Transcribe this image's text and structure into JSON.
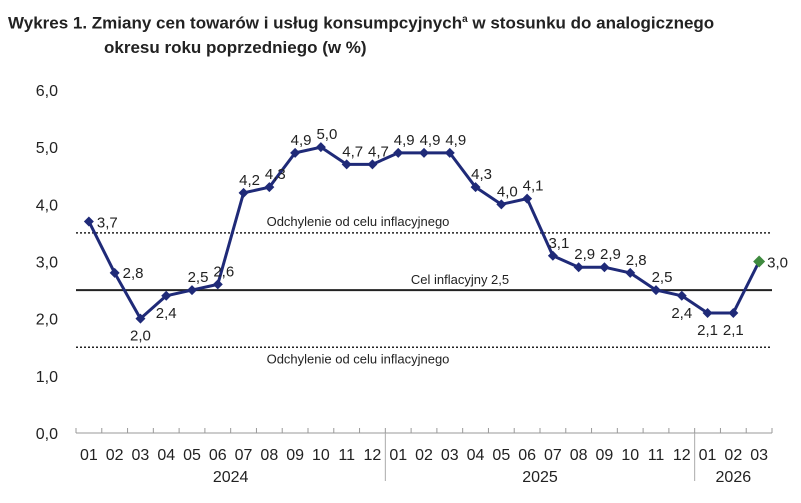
{
  "chart_data": {
    "type": "line",
    "title_line1": "Wykres 1. Zmiany cen towarów i usług konsumpcyjnych",
    "title_sup": "a",
    "title_mid": " w stosunku do analogicznego",
    "title_line2": "okresu roku poprzedniego (w %)",
    "ylim": [
      0,
      6
    ],
    "yticks": [
      "0,0",
      "1,0",
      "2,0",
      "3,0",
      "4,0",
      "5,0",
      "6,0"
    ],
    "categories": [
      "01",
      "02",
      "03",
      "04",
      "05",
      "06",
      "07",
      "08",
      "09",
      "10",
      "11",
      "12",
      "01",
      "02",
      "03",
      "04",
      "05",
      "06",
      "07",
      "08",
      "09",
      "10",
      "11",
      "12",
      "01",
      "02",
      "03"
    ],
    "years": [
      {
        "label": "2024",
        "months": 12
      },
      {
        "label": "2025",
        "months": 12
      },
      {
        "label": "2026",
        "months": 3
      }
    ],
    "values": [
      3.7,
      2.8,
      2.0,
      2.4,
      2.5,
      2.6,
      4.2,
      4.3,
      4.9,
      5.0,
      4.7,
      4.7,
      4.9,
      4.9,
      4.9,
      4.3,
      4.0,
      4.1,
      3.1,
      2.9,
      2.9,
      2.8,
      2.5,
      2.4,
      2.1,
      2.1,
      3.0
    ],
    "data_labels": [
      "3,7",
      "2,8",
      "2,0",
      "2,4",
      "2,5",
      "2,6",
      "4,2",
      "4,3",
      "4,9",
      "5,0",
      "4,7",
      "4,7",
      "4,9",
      "4,9",
      "4,9",
      "4,3",
      "4,0",
      "4,1",
      "3,1",
      "2,9",
      "2,9",
      "2,8",
      "2,5",
      "2,4",
      "2,1",
      "2,1",
      "3,0"
    ],
    "reference_lines": [
      {
        "value": 3.5,
        "style": "dotted",
        "label": "Odchylenie od celu inflacyjnego"
      },
      {
        "value": 2.5,
        "style": "solid",
        "label": "Cel inflacyjny 2,5"
      },
      {
        "value": 1.5,
        "style": "dotted",
        "label": "Odchylenie od celu inflacyjnego"
      }
    ],
    "colors": {
      "line": "#1f2a78",
      "last_point": "#3f8a3f",
      "reference": "#222222"
    },
    "grid": false
  }
}
